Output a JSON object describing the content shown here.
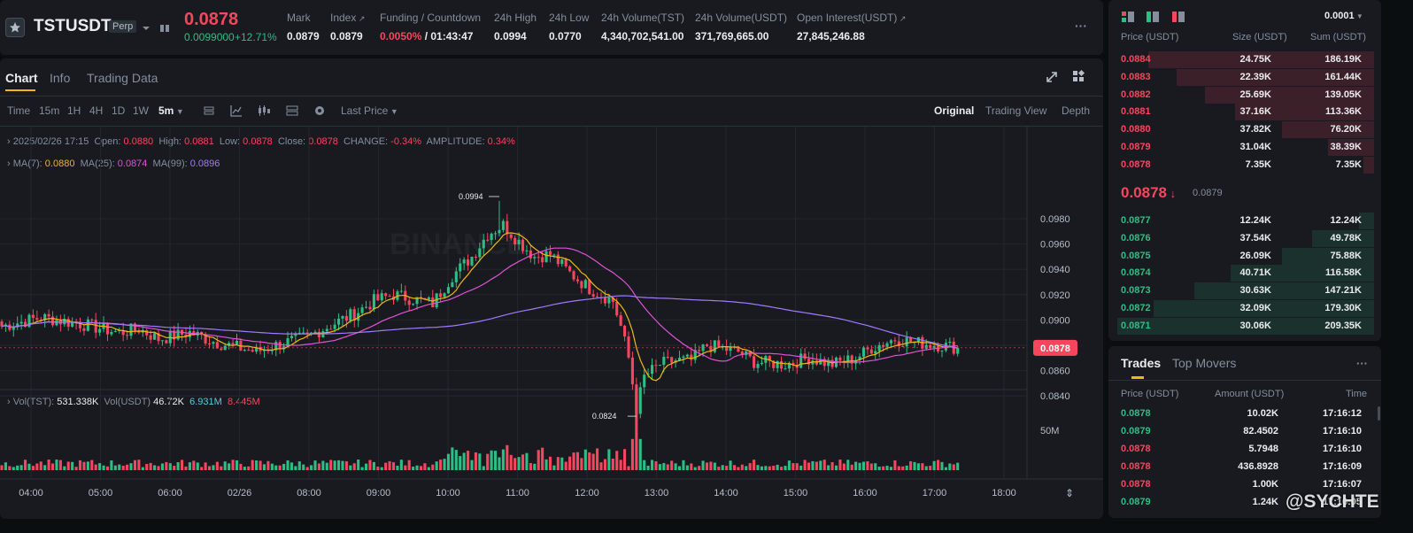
{
  "header": {
    "symbol": "TSTUSDT",
    "badge": "Perp",
    "last_price": "0.0878",
    "change_abs": "0.0099000",
    "change_pct": "+12.71%",
    "stats": [
      {
        "label": "Mark",
        "value": "0.0879",
        "link": false
      },
      {
        "label": "Index",
        "value": "0.0879",
        "link": true
      },
      {
        "label": "Funding / Countdown",
        "value": "0.0050%",
        "value2": " / 01:43:47",
        "link": false
      },
      {
        "label": "24h High",
        "value": "0.0994",
        "link": false
      },
      {
        "label": "24h Low",
        "value": "0.0770",
        "link": false
      },
      {
        "label": "24h Volume(TST)",
        "value": "4,340,702,541.00",
        "link": false
      },
      {
        "label": "24h Volume(USDT)",
        "value": "371,769,665.00",
        "link": false
      },
      {
        "label": "Open Interest(USDT)",
        "value": "27,845,246.88",
        "link": true
      }
    ],
    "more": "···"
  },
  "chart_panel": {
    "tabs": [
      {
        "label": "Chart",
        "active": true
      },
      {
        "label": "Info",
        "active": false
      },
      {
        "label": "Trading Data",
        "active": false
      }
    ],
    "timeframes": [
      "Time",
      "15m",
      "1H",
      "4H",
      "1D",
      "1W",
      "5m"
    ],
    "active_timeframe": "5m",
    "price_type": "Last Price",
    "views": [
      {
        "label": "Original",
        "active": true
      },
      {
        "label": "Trading View",
        "active": false
      },
      {
        "label": "Depth",
        "active": false
      }
    ],
    "ohlc": {
      "date": "2025/02/26 17:15",
      "open_label": "Open:",
      "open": "0.0880",
      "high_label": "High:",
      "high": "0.0881",
      "low_label": "Low:",
      "low": "0.0878",
      "close_label": "Close:",
      "close": "0.0878",
      "change_label": "CHANGE:",
      "change": "-0.34%",
      "amp_label": "AMPLITUDE:",
      "amp": "0.34%"
    },
    "ma": {
      "ma7_label": "MA(7):",
      "ma7": "0.0880",
      "ma25_label": "MA(25):",
      "ma25": "0.0874",
      "ma99_label": "MA(99):",
      "ma99": "0.0896"
    },
    "vol_legend": {
      "label1": "Vol(TST):",
      "v1": "531.338K",
      "label2": "Vol(USDT)",
      "v2": "46.72K",
      "v3": "6.931M",
      "v4": "8.445M"
    },
    "watermark": "BINANCE"
  },
  "chart_data": {
    "type": "candlestick",
    "y_ticks": [
      "0.0980",
      "0.0960",
      "0.0940",
      "0.0920",
      "0.0900",
      "0.0880",
      "0.0860",
      "0.0840"
    ],
    "vol_ticks": [
      "50M"
    ],
    "x_ticks": [
      "04:00",
      "05:00",
      "06:00",
      "02/26",
      "08:00",
      "09:00",
      "10:00",
      "11:00",
      "12:00",
      "13:00",
      "14:00",
      "15:00",
      "16:00",
      "17:00",
      "18:00"
    ],
    "current_price_label": "0.0878",
    "high_marker": "0.0994",
    "low_marker": "0.0824",
    "colors": {
      "up": "#2ebd85",
      "down": "#f6465d",
      "ma7": "#f0b90b",
      "ma25": "#e052d6",
      "ma99": "#a17aff"
    },
    "anchors": [
      [
        0,
        0.0895
      ],
      [
        10,
        0.0902
      ],
      [
        20,
        0.0897
      ],
      [
        30,
        0.089
      ],
      [
        35,
        0.0893
      ],
      [
        40,
        0.0885
      ],
      [
        48,
        0.089
      ],
      [
        55,
        0.0882
      ],
      [
        65,
        0.0875
      ],
      [
        70,
        0.088
      ],
      [
        78,
        0.0887
      ],
      [
        82,
        0.0893
      ],
      [
        90,
        0.0905
      ],
      [
        95,
        0.0915
      ],
      [
        100,
        0.092
      ],
      [
        110,
        0.0913
      ],
      [
        115,
        0.0935
      ],
      [
        120,
        0.095
      ],
      [
        124,
        0.0968
      ],
      [
        128,
        0.0975
      ],
      [
        132,
        0.0962
      ],
      [
        136,
        0.095
      ],
      [
        140,
        0.0952
      ],
      [
        145,
        0.0937
      ],
      [
        150,
        0.0925
      ],
      [
        156,
        0.0915
      ],
      [
        158,
        0.0895
      ],
      [
        160,
        0.087
      ],
      [
        162,
        0.083
      ],
      [
        164,
        0.0855
      ],
      [
        168,
        0.0865
      ],
      [
        172,
        0.0868
      ],
      [
        176,
        0.0868
      ],
      [
        180,
        0.088
      ],
      [
        188,
        0.0875
      ],
      [
        192,
        0.0867
      ],
      [
        200,
        0.0865
      ],
      [
        206,
        0.087
      ],
      [
        212,
        0.0865
      ],
      [
        218,
        0.087
      ],
      [
        222,
        0.0878
      ],
      [
        228,
        0.0885
      ],
      [
        234,
        0.0882
      ],
      [
        240,
        0.088
      ],
      [
        244,
        0.0878
      ]
    ]
  },
  "orderbook": {
    "tick": "0.0001",
    "headers": [
      "Price (USDT)",
      "Size (USDT)",
      "Sum (USDT)"
    ],
    "asks": [
      {
        "price": "0.0884",
        "size": "24.75K",
        "sum": "186.19K",
        "depth": 0.88
      },
      {
        "price": "0.0883",
        "size": "22.39K",
        "sum": "161.44K",
        "depth": 0.77
      },
      {
        "price": "0.0882",
        "size": "25.69K",
        "sum": "139.05K",
        "depth": 0.66
      },
      {
        "price": "0.0881",
        "size": "37.16K",
        "sum": "113.36K",
        "depth": 0.54
      },
      {
        "price": "0.0880",
        "size": "37.82K",
        "sum": "76.20K",
        "depth": 0.36
      },
      {
        "price": "0.0879",
        "size": "31.04K",
        "sum": "38.39K",
        "depth": 0.18
      },
      {
        "price": "0.0878",
        "size": "7.35K",
        "sum": "7.35K",
        "depth": 0.04
      }
    ],
    "mid_price": "0.0878",
    "mid_mark": "0.0879",
    "bids": [
      {
        "price": "0.0877",
        "size": "12.24K",
        "sum": "12.24K",
        "depth": 0.06
      },
      {
        "price": "0.0876",
        "size": "37.54K",
        "sum": "49.78K",
        "depth": 0.24
      },
      {
        "price": "0.0875",
        "size": "26.09K",
        "sum": "75.88K",
        "depth": 0.36
      },
      {
        "price": "0.0874",
        "size": "40.71K",
        "sum": "116.58K",
        "depth": 0.56
      },
      {
        "price": "0.0873",
        "size": "30.63K",
        "sum": "147.21K",
        "depth": 0.7
      },
      {
        "price": "0.0872",
        "size": "32.09K",
        "sum": "179.30K",
        "depth": 0.86
      },
      {
        "price": "0.0871",
        "size": "30.06K",
        "sum": "209.35K",
        "depth": 1.0
      }
    ]
  },
  "trades": {
    "tabs": [
      {
        "label": "Trades",
        "active": true
      },
      {
        "label": "Top Movers",
        "active": false
      }
    ],
    "headers": [
      "Price (USDT)",
      "Amount (USDT)",
      "Time"
    ],
    "rows": [
      {
        "price": "0.0878",
        "amount": "10.02K",
        "time": "17:16:12",
        "side": "buy"
      },
      {
        "price": "0.0879",
        "amount": "82.4502",
        "time": "17:16:10",
        "side": "buy"
      },
      {
        "price": "0.0878",
        "amount": "5.7948",
        "time": "17:16:10",
        "side": "sell"
      },
      {
        "price": "0.0878",
        "amount": "436.8928",
        "time": "17:16:09",
        "side": "sell"
      },
      {
        "price": "0.0878",
        "amount": "1.00K",
        "time": "17:16:07",
        "side": "sell"
      },
      {
        "price": "0.0879",
        "amount": "1.24K",
        "time": "17:16:05",
        "side": "buy"
      }
    ],
    "watermark": "@SYCHTE"
  }
}
